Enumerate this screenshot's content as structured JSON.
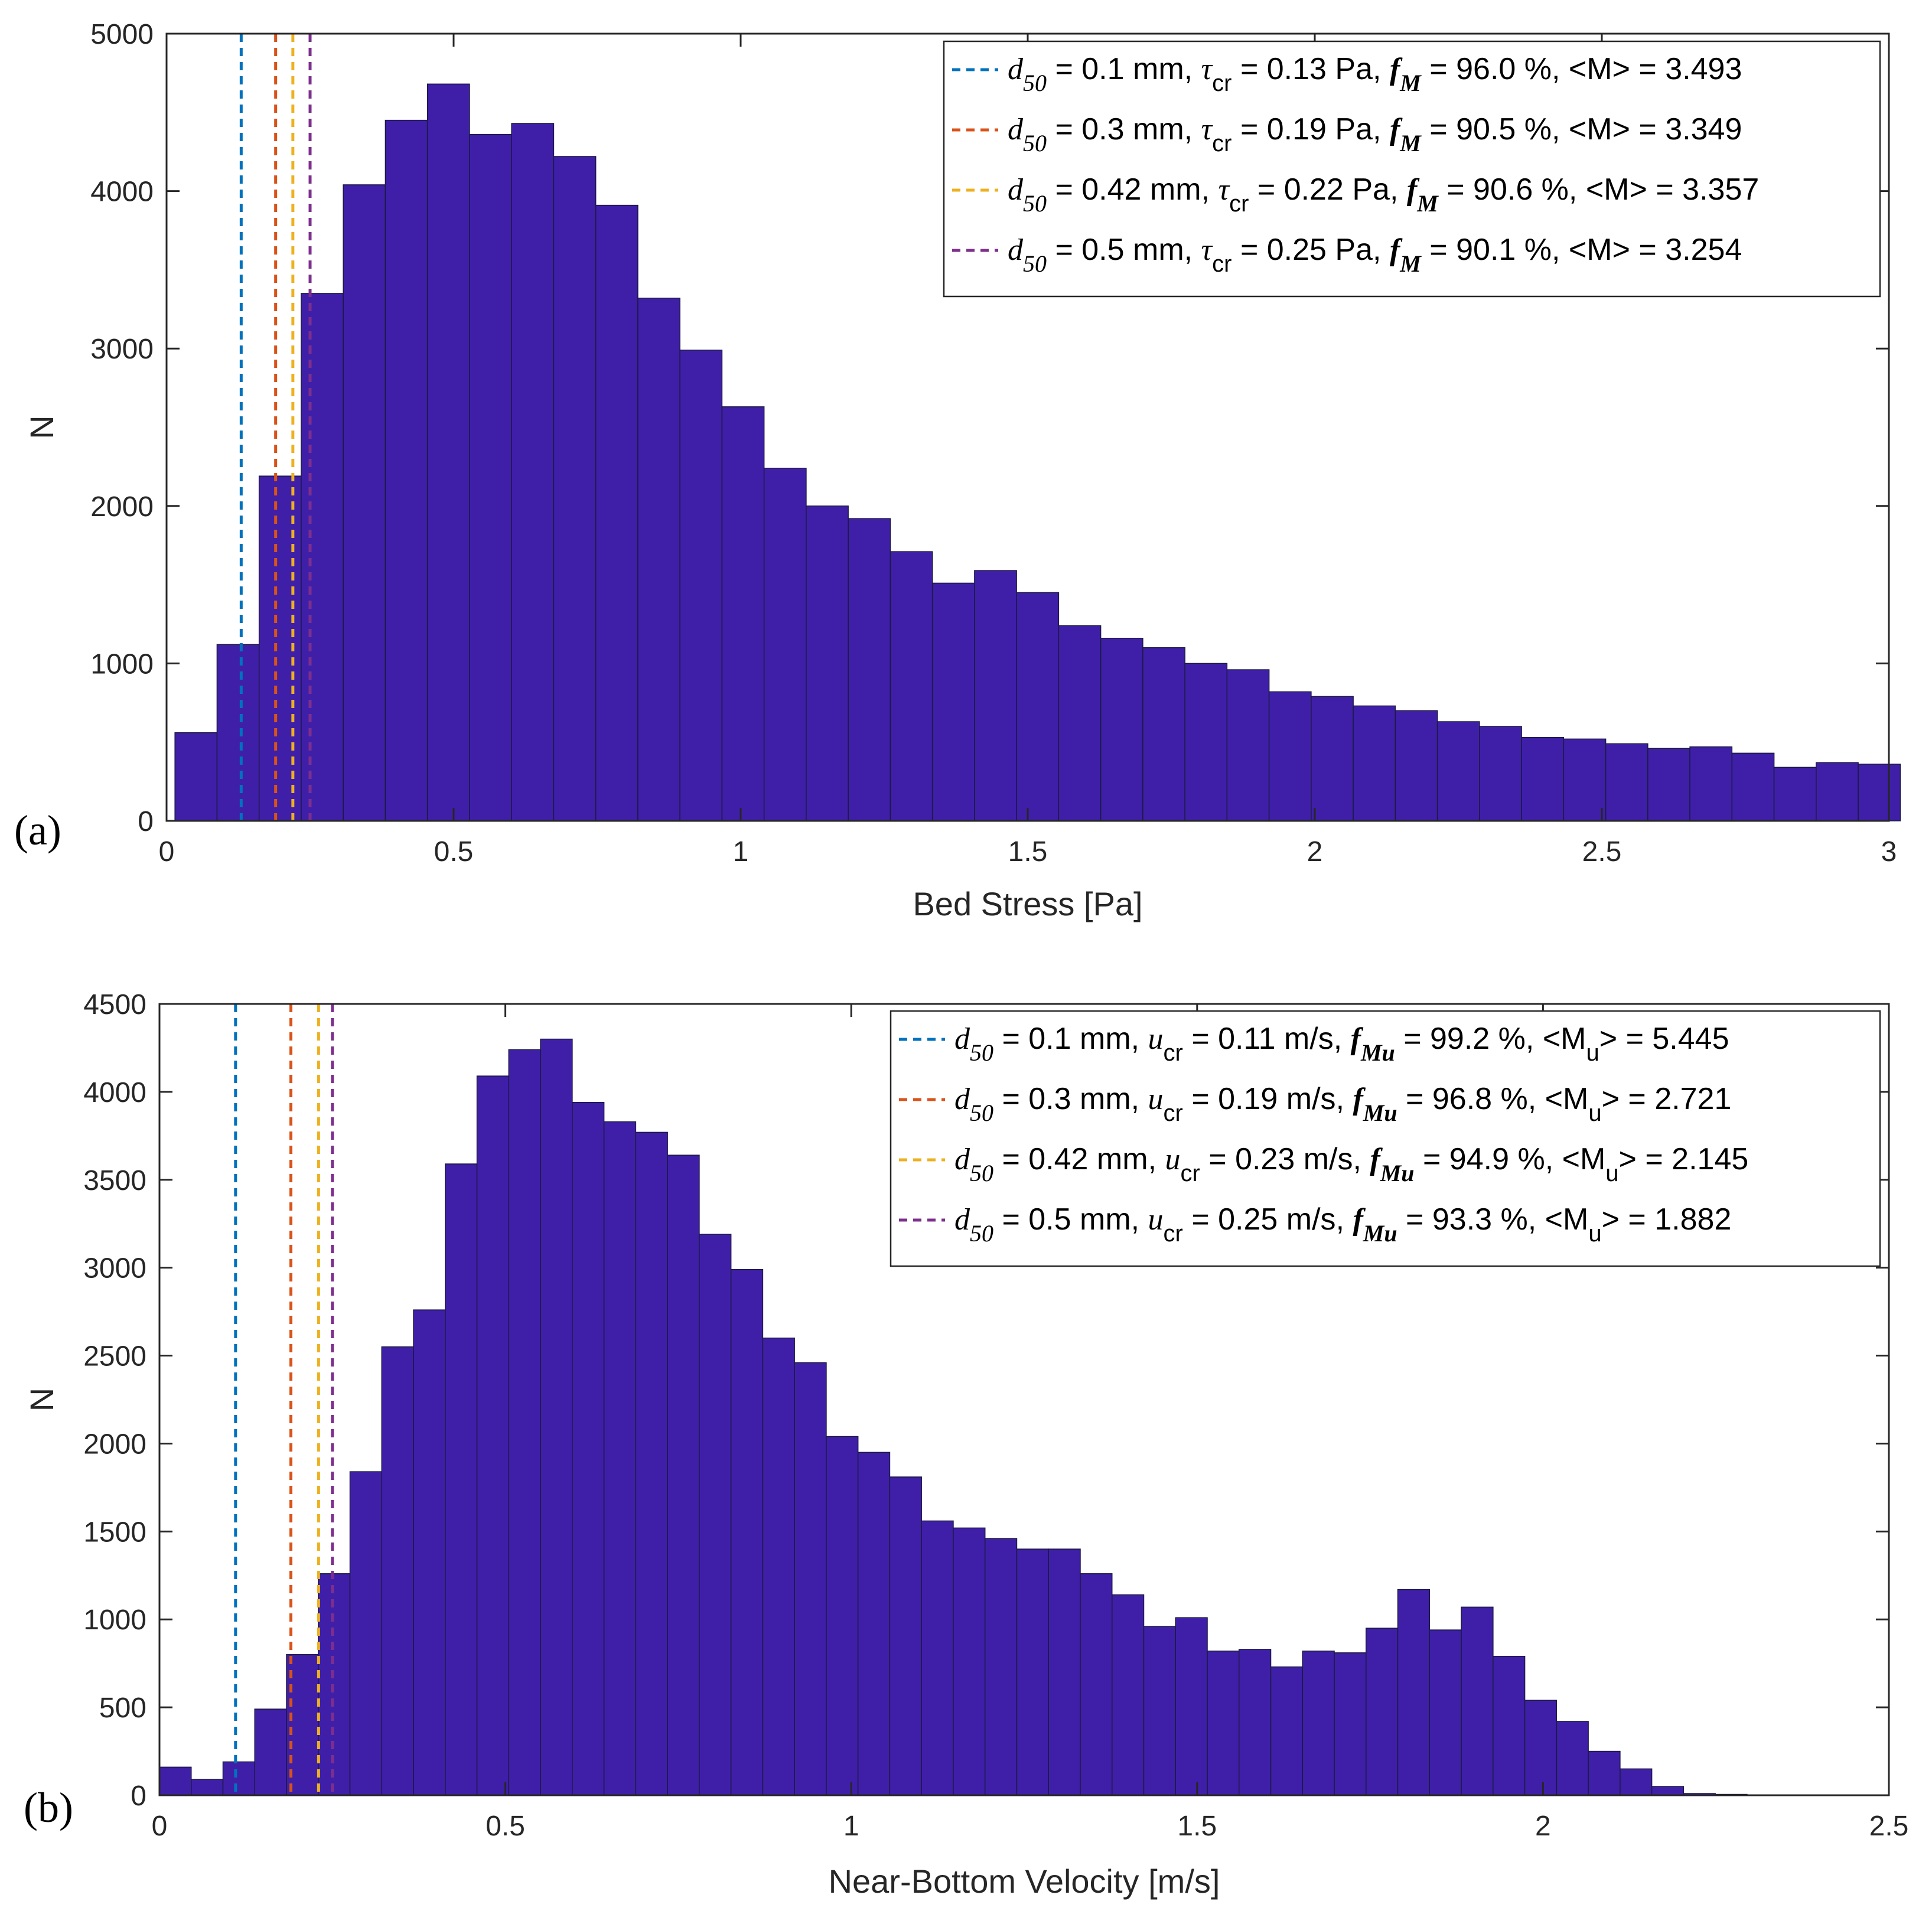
{
  "colors": {
    "bar": "#3f1fa8",
    "bar_edge": "#1a1a40",
    "d01": "#0072BD",
    "d03": "#D95319",
    "d042": "#EDB120",
    "d05": "#7E2F8E",
    "axis": "#262626"
  },
  "chart_data": [
    {
      "type": "bar",
      "panel_label": "(a)",
      "xlabel": "Bed Stress [Pa]",
      "ylabel": "N",
      "xlim": [
        0,
        3
      ],
      "ylim": [
        0,
        5000
      ],
      "xticks": [
        "0",
        "0.5",
        "1",
        "1.5",
        "2",
        "2.5",
        "3"
      ],
      "xtick_values": [
        0,
        0.5,
        1,
        1.5,
        2,
        2.5,
        3
      ],
      "yticks": [
        "0",
        "1000",
        "2000",
        "3000",
        "4000",
        "5000"
      ],
      "ytick_values": [
        0,
        1000,
        2000,
        3000,
        4000,
        5000
      ],
      "bin_start": 0.0146,
      "bin_width": 0.0733,
      "values": [
        560,
        1120,
        2190,
        3350,
        4040,
        4450,
        4680,
        4360,
        4430,
        4220,
        3910,
        3320,
        2990,
        2630,
        2240,
        2000,
        1920,
        1710,
        1510,
        1590,
        1450,
        1240,
        1160,
        1100,
        1000,
        960,
        820,
        790,
        730,
        700,
        630,
        600,
        530,
        520,
        490,
        460,
        470,
        430,
        340,
        370,
        360
      ],
      "thresholds": [
        {
          "x": 0.13,
          "color_key": "d01",
          "d50": "0.1 mm",
          "crit": "0.13 Pa",
          "f": "96.0 %",
          "mean": "3.493"
        },
        {
          "x": 0.19,
          "color_key": "d03",
          "d50": "0.3 mm",
          "crit": "0.19 Pa",
          "f": "90.5 %",
          "mean": "3.349"
        },
        {
          "x": 0.22,
          "color_key": "d042",
          "d50": "0.42 mm",
          "crit": "0.22 Pa",
          "f": "90.6 %",
          "mean": "3.357"
        },
        {
          "x": 0.25,
          "color_key": "d05",
          "d50": "0.5 mm",
          "crit": "0.25 Pa",
          "f": "90.1 %",
          "mean": "3.254"
        }
      ],
      "legend_placement": "top-right",
      "legend": {
        "d_sym": "d",
        "d_sub": "50",
        "crit_sym": "τ",
        "crit_sub": "cr",
        "f_sym": "f",
        "f_sub": "M",
        "mean_sym": "<M>",
        "mean_sym_sub": ""
      }
    },
    {
      "type": "bar",
      "panel_label": "(b)",
      "xlabel": "Near-Bottom Velocity [m/s]",
      "ylabel": "N",
      "xlim": [
        0,
        2.5
      ],
      "ylim": [
        0,
        4500
      ],
      "xticks": [
        "0",
        "0.5",
        "1",
        "1.5",
        "2",
        "2.5"
      ],
      "xtick_values": [
        0,
        0.5,
        1,
        1.5,
        2,
        2.5
      ],
      "yticks": [
        "0",
        "500",
        "1000",
        "1500",
        "2000",
        "2500",
        "3000",
        "3500",
        "4000",
        "4500"
      ],
      "ytick_values": [
        0,
        500,
        1000,
        1500,
        2000,
        2500,
        3000,
        3500,
        4000,
        4500
      ],
      "bin_start": 0.0,
      "bin_width": 0.0459,
      "values": [
        160,
        90,
        190,
        490,
        800,
        1260,
        1840,
        2550,
        2760,
        3590,
        4090,
        4240,
        4300,
        3940,
        3830,
        3770,
        3640,
        3190,
        2990,
        2600,
        2460,
        2040,
        1950,
        1810,
        1560,
        1520,
        1460,
        1400,
        1400,
        1260,
        1140,
        960,
        1010,
        820,
        830,
        730,
        820,
        810,
        950,
        1170,
        940,
        1070,
        790,
        540,
        420,
        250,
        150,
        50,
        10,
        5
      ],
      "thresholds": [
        {
          "x": 0.11,
          "color_key": "d01",
          "d50": "0.1 mm",
          "crit": "0.11 m/s",
          "f": "99.2 %",
          "mean": "5.445"
        },
        {
          "x": 0.19,
          "color_key": "d03",
          "d50": "0.3 mm",
          "crit": "0.19 m/s",
          "f": "96.8 %",
          "mean": "2.721"
        },
        {
          "x": 0.23,
          "color_key": "d042",
          "d50": "0.42 mm",
          "crit": "0.23 m/s",
          "f": "94.9 %",
          "mean": "2.145"
        },
        {
          "x": 0.25,
          "color_key": "d05",
          "d50": "0.5 mm",
          "crit": "0.25 m/s",
          "f": "93.3 %",
          "mean": "1.882"
        }
      ],
      "legend_placement": "top-right",
      "legend": {
        "d_sym": "d",
        "d_sub": "50",
        "crit_sym": "u",
        "crit_sub": "cr",
        "f_sym": "f",
        "f_sub": "Mu",
        "mean_sym": "<M",
        "mean_sym_sub": "u"
      }
    }
  ]
}
